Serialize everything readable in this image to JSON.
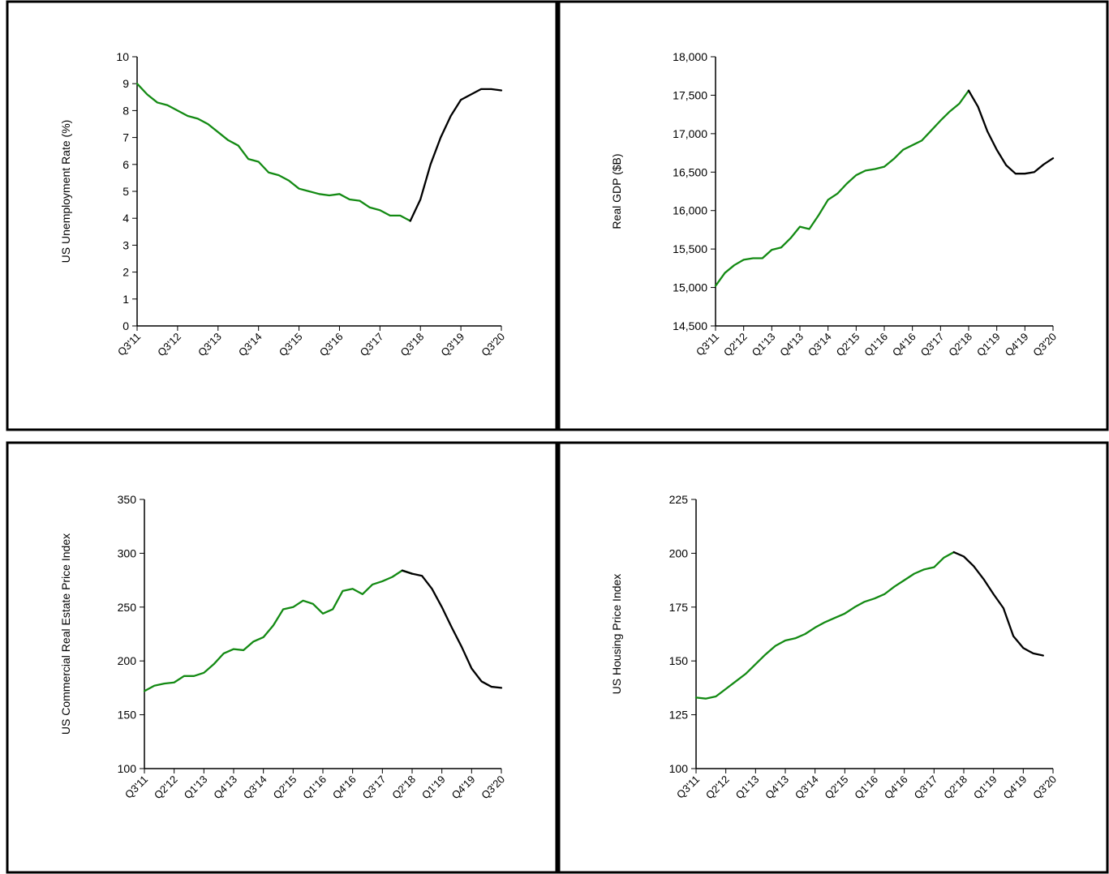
{
  "colors": {
    "actual": "#138a13",
    "projected": "#000000",
    "axis": "#000000",
    "border": "#000000"
  },
  "chart_data": [
    {
      "type": "line",
      "title": "",
      "ylabel": "US Unemployment Rate (%)",
      "xlabel": "",
      "ylim": [
        0,
        10
      ],
      "yticks": [
        0,
        1,
        2,
        3,
        4,
        5,
        6,
        7,
        8,
        9,
        10
      ],
      "ytick_labels": [
        "0",
        "1",
        "2",
        "3",
        "4",
        "5",
        "6",
        "7",
        "8",
        "9",
        "10"
      ],
      "xtick_labels": [
        "Q3'11",
        "Q3'12",
        "Q3'13",
        "Q3'14",
        "Q3'15",
        "Q3'16",
        "Q3'17",
        "Q3'18",
        "Q3'19",
        "Q3'20"
      ],
      "xtick_index": [
        0,
        4,
        8,
        12,
        16,
        20,
        24,
        28,
        32,
        36
      ],
      "n_quarters": 37,
      "series": [
        {
          "style": "actual",
          "start": 0,
          "values": [
            9.0,
            8.6,
            8.3,
            8.2,
            8.0,
            7.8,
            7.7,
            7.5,
            7.2,
            6.9,
            6.7,
            6.2,
            6.1,
            5.7,
            5.6,
            5.4,
            5.1,
            5.0,
            4.9,
            4.85,
            4.9,
            4.7,
            4.65,
            4.4,
            4.3,
            4.1,
            4.1,
            3.9
          ]
        },
        {
          "style": "projected",
          "start": 27,
          "values": [
            3.9,
            4.7,
            6.0,
            7.0,
            7.8,
            8.4,
            8.6,
            8.8,
            8.8,
            8.75
          ]
        }
      ]
    },
    {
      "type": "line",
      "title": "",
      "ylabel": "Real GDP ($B)",
      "xlabel": "",
      "ylim": [
        14500,
        18000
      ],
      "yticks": [
        14500,
        15000,
        15500,
        16000,
        16500,
        17000,
        17500,
        18000
      ],
      "ytick_labels": [
        "14,500",
        "15,000",
        "15,500",
        "16,000",
        "16,500",
        "17,000",
        "17,500",
        "18,000"
      ],
      "xtick_labels": [
        "Q3'11",
        "Q2'12",
        "Q1'13",
        "Q4'13",
        "Q3'14",
        "Q2'15",
        "Q1'16",
        "Q4'16",
        "Q3'17",
        "Q2'18",
        "Q1'19",
        "Q4'19",
        "Q3'20"
      ],
      "xtick_index": [
        0,
        3,
        6,
        9,
        12,
        15,
        18,
        21,
        24,
        27,
        30,
        33,
        36
      ],
      "n_quarters": 37,
      "series": [
        {
          "style": "actual",
          "start": 0,
          "values": [
            15020,
            15190,
            15290,
            15360,
            15380,
            15380,
            15490,
            15520,
            15640,
            15790,
            15760,
            15940,
            16140,
            16220,
            16350,
            16460,
            16520,
            16540,
            16570,
            16670,
            16790,
            16850,
            16910,
            17040,
            17170,
            17290,
            17390,
            17560
          ]
        },
        {
          "style": "projected",
          "start": 27,
          "values": [
            17560,
            17350,
            17030,
            16790,
            16590,
            16480,
            16480,
            16500,
            16600,
            16680
          ]
        }
      ]
    },
    {
      "type": "line",
      "title": "",
      "ylabel": "US Commercial Real Estate Price Index",
      "xlabel": "",
      "ylim": [
        100,
        350
      ],
      "yticks": [
        100,
        150,
        200,
        250,
        300,
        350
      ],
      "ytick_labels": [
        "100",
        "150",
        "200",
        "250",
        "300",
        "350"
      ],
      "xtick_labels": [
        "Q3'11",
        "Q2'12",
        "Q1'13",
        "Q4'13",
        "Q3'14",
        "Q2'15",
        "Q1'16",
        "Q4'16",
        "Q3'17",
        "Q2'18",
        "Q1'19",
        "Q4'19",
        "Q3'20"
      ],
      "xtick_index": [
        0,
        3,
        6,
        9,
        12,
        15,
        18,
        21,
        24,
        27,
        30,
        33,
        36
      ],
      "n_quarters": 37,
      "series": [
        {
          "style": "actual",
          "start": 0,
          "values": [
            172,
            177,
            179,
            180,
            186,
            186,
            189,
            197,
            207,
            211,
            210,
            218,
            222,
            233,
            248,
            250,
            256,
            253,
            244,
            248,
            265,
            267,
            262,
            271,
            274,
            278,
            284,
            281
          ]
        },
        {
          "style": "projected",
          "start": 26,
          "values": [
            284,
            281,
            279,
            267,
            250,
            231,
            213,
            193,
            181,
            176,
            175
          ]
        }
      ]
    },
    {
      "type": "line",
      "title": "",
      "ylabel": "US Housing Price Index",
      "xlabel": "",
      "ylim": [
        100,
        225
      ],
      "yticks": [
        100,
        125,
        150,
        175,
        200,
        225
      ],
      "ytick_labels": [
        "100",
        "125",
        "150",
        "175",
        "200",
        "225"
      ],
      "xtick_labels": [
        "Q3'11",
        "Q2'12",
        "Q1'13",
        "Q4'13",
        "Q3'14",
        "Q2'15",
        "Q1'16",
        "Q4'16",
        "Q3'17",
        "Q2'18",
        "Q1'19",
        "Q4'19",
        "Q3'20"
      ],
      "xtick_index": [
        0,
        3,
        6,
        9,
        12,
        15,
        18,
        21,
        24,
        27,
        30,
        33,
        36
      ],
      "n_quarters": 37,
      "series": [
        {
          "style": "actual",
          "start": 0,
          "values": [
            133,
            132.5,
            133.5,
            137,
            140.5,
            144,
            148.5,
            153,
            157,
            159.5,
            160.5,
            162.5,
            165.5,
            168,
            170,
            172,
            175,
            177.5,
            179,
            181,
            184.5,
            187.5,
            190.5,
            192.5,
            193.5,
            198,
            200.5
          ]
        },
        {
          "style": "projected",
          "start": 26,
          "values": [
            200.5,
            198.5,
            194,
            188,
            181,
            174.5,
            161.5,
            156,
            153.5,
            152.5
          ]
        }
      ]
    }
  ]
}
